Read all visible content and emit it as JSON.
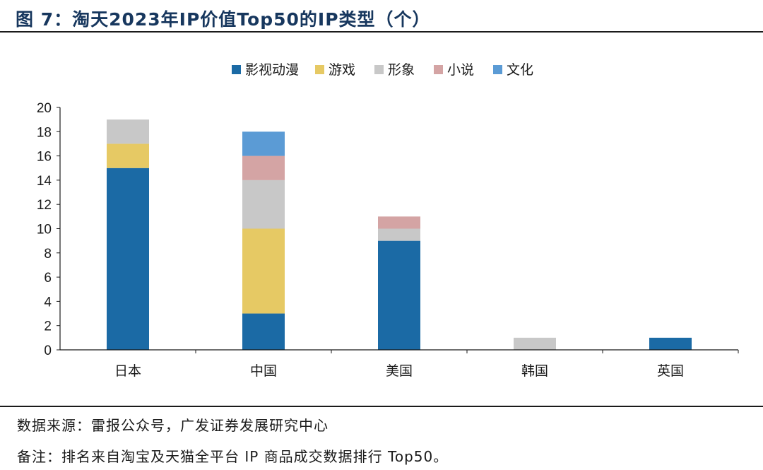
{
  "header": {
    "title": "图 7：淘天2023年IP价值Top50的IP类型（个）"
  },
  "footer": {
    "source": "数据来源：雷报公众号，广发证券发展研究中心",
    "note": "备注：排名来自淘宝及天猫全平台 IP 商品成交数据排行 Top50。"
  },
  "chart_data": {
    "type": "bar",
    "stacked": true,
    "categories": [
      "日本",
      "中国",
      "美国",
      "韩国",
      "英国"
    ],
    "series": [
      {
        "name": "影视动漫",
        "color": "#1b6aa5",
        "values": [
          15,
          3,
          9,
          0,
          1
        ]
      },
      {
        "name": "游戏",
        "color": "#e6c964",
        "values": [
          2,
          7,
          0,
          0,
          0
        ]
      },
      {
        "name": "形象",
        "color": "#c8c8c8",
        "values": [
          2,
          4,
          1,
          1,
          0
        ]
      },
      {
        "name": "小说",
        "color": "#d4a4a4",
        "values": [
          0,
          2,
          1,
          0,
          0
        ]
      },
      {
        "name": "文化",
        "color": "#5b9bd5",
        "values": [
          0,
          2,
          0,
          0,
          0
        ]
      }
    ],
    "yticks": [
      0,
      2,
      4,
      6,
      8,
      10,
      12,
      14,
      16,
      18,
      20
    ],
    "ylim": [
      0,
      20
    ],
    "grid": false,
    "legend": "top-center"
  }
}
